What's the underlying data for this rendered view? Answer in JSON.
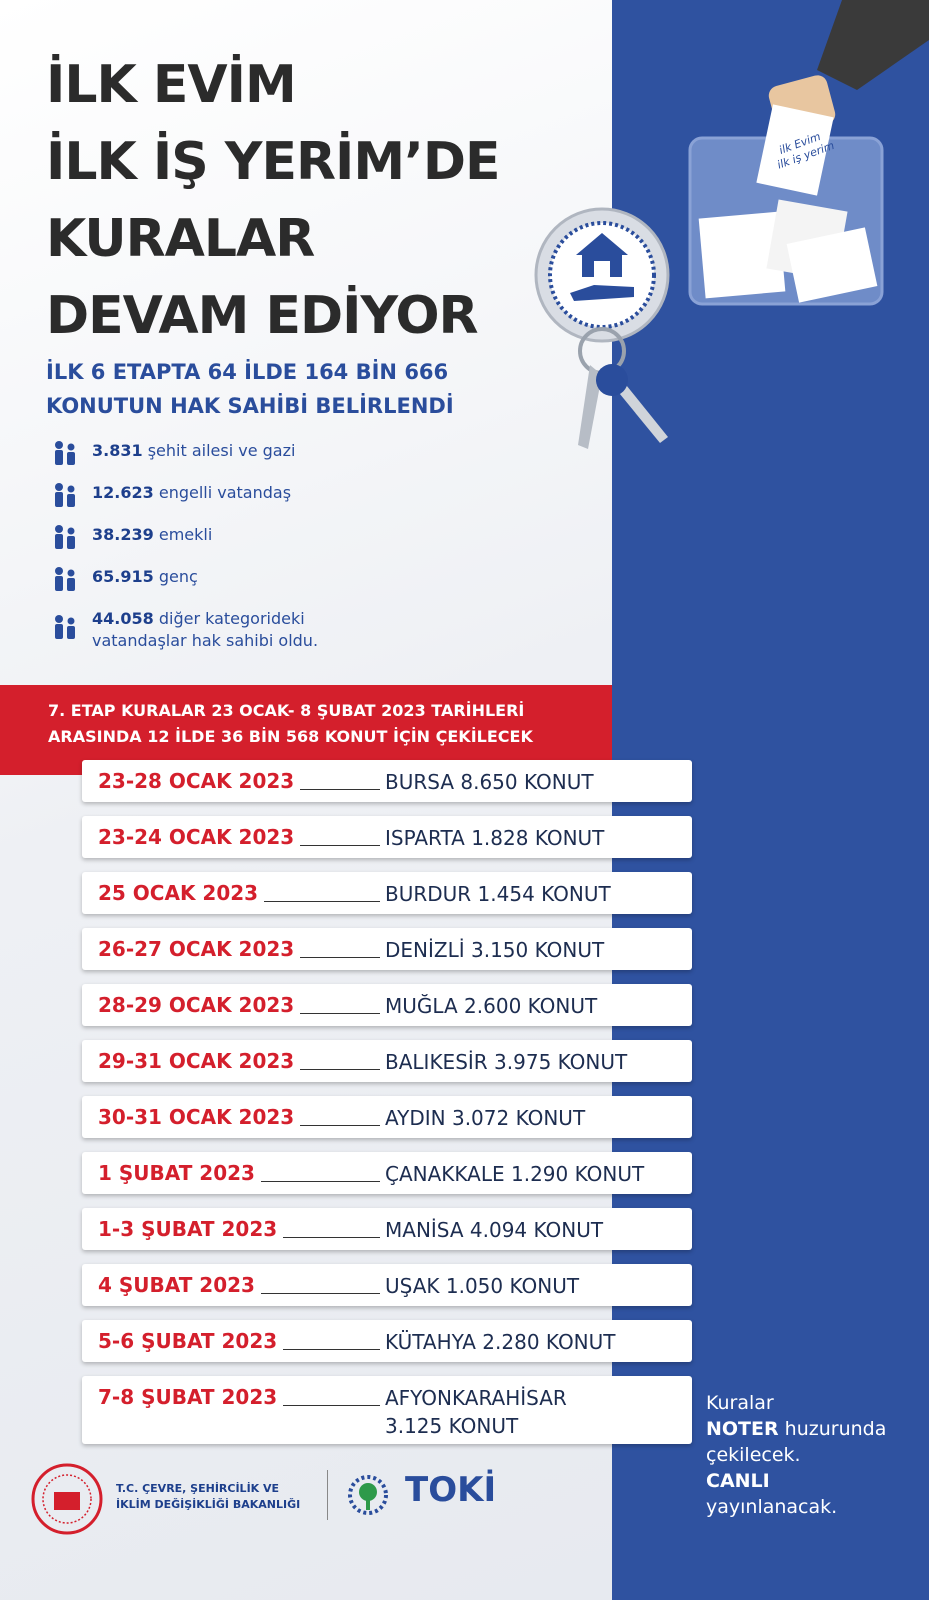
{
  "header": {
    "title_lines": [
      "İLK EVİM",
      "İLK İŞ YERİM’DE",
      "KURALAR",
      "DEVAM EDİYOR"
    ],
    "subtitle_lines": [
      "İLK 6 ETAPTA 64 İLDE 164 BİN 666",
      "KONUTUN HAK SAHİBİ BELİRLENDİ"
    ]
  },
  "ballot": {
    "lines": [
      "ilk Evim",
      "ilk iş yerim"
    ]
  },
  "stats": [
    {
      "count": "3.831",
      "lines": [
        "şehit ailesi ve gazi"
      ]
    },
    {
      "count": "12.623",
      "lines": [
        "engelli vatandaş"
      ]
    },
    {
      "count": "38.239",
      "lines": [
        "emekli"
      ]
    },
    {
      "count": "65.915",
      "lines": [
        "genç"
      ]
    },
    {
      "count": "44.058",
      "lines": [
        "diğer kategorideki",
        "vatandaşlar hak sahibi oldu."
      ]
    }
  ],
  "banner": {
    "lines": [
      "7. ETAP KURALAR 23 OCAK- 8 ŞUBAT 2023 TARİHLERİ",
      "ARASINDA 12 İLDE 36 BİN 568 KONUT İÇİN ÇEKİLECEK"
    ]
  },
  "schedule": [
    {
      "date": "23-28 OCAK 2023",
      "place": [
        "BURSA 8.650 KONUT"
      ]
    },
    {
      "date": "23-24 OCAK 2023",
      "place": [
        "ISPARTA 1.828 KONUT"
      ]
    },
    {
      "date": "25 OCAK 2023",
      "place": [
        "BURDUR 1.454 KONUT"
      ]
    },
    {
      "date": "26-27 OCAK 2023",
      "place": [
        "DENİZLİ 3.150 KONUT"
      ]
    },
    {
      "date": "28-29 OCAK 2023",
      "place": [
        "MUĞLA 2.600 KONUT"
      ]
    },
    {
      "date": "29-31 OCAK 2023",
      "place": [
        "BALIKESİR 3.975 KONUT"
      ]
    },
    {
      "date": "30-31 OCAK 2023",
      "place": [
        "AYDIN 3.072 KONUT"
      ]
    },
    {
      "date": "1 ŞUBAT 2023",
      "place": [
        "ÇANAKKALE 1.290 KONUT"
      ]
    },
    {
      "date": "1-3 ŞUBAT 2023",
      "place": [
        "MANİSA 4.094 KONUT"
      ]
    },
    {
      "date": "4 ŞUBAT 2023",
      "place": [
        "UŞAK 1.050 KONUT"
      ]
    },
    {
      "date": "5-6 ŞUBAT 2023",
      "place": [
        "KÜTAHYA 2.280 KONUT"
      ]
    },
    {
      "date": "7-8 ŞUBAT 2023",
      "place": [
        "AFYONKARAHİSAR",
        "3.125 KONUT"
      ]
    }
  ],
  "note": {
    "line1": "Kuralar",
    "noter": "NOTER",
    "line2": " huzurunda",
    "line3": "çekilecek.",
    "canli": "CANLI",
    "line4": "yayınlanacak."
  },
  "footer": {
    "ministry_lines": [
      "T.C. ÇEVRE, ŞEHİRCİLİK VE",
      "İKLİM DEĞİŞİKLİĞİ BAKANLIĞI"
    ],
    "toki": "TOKİ"
  }
}
